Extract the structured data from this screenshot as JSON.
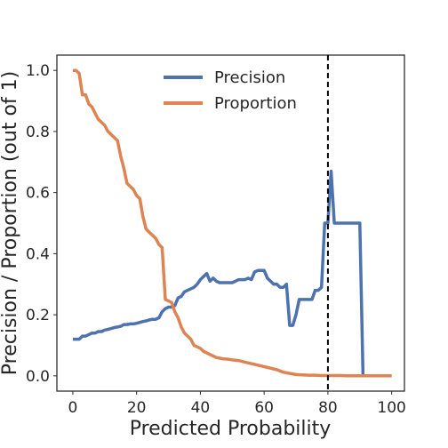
{
  "chart_data": {
    "type": "line",
    "title": "",
    "xlabel": "Predicted Probability",
    "ylabel": "Precision / Proportion (out of 1)",
    "xlim": [
      -5,
      104
    ],
    "ylim": [
      -0.05,
      1.05
    ],
    "xticks": [
      0,
      20,
      40,
      60,
      80,
      100
    ],
    "yticks": [
      0.0,
      0.2,
      0.4,
      0.6,
      0.8,
      1.0
    ],
    "xtick_labels": [
      "0",
      "20",
      "40",
      "60",
      "80",
      "100"
    ],
    "ytick_labels": [
      "0.0",
      "0.2",
      "0.4",
      "0.6",
      "0.8",
      "1.0"
    ],
    "grid": false,
    "legend_position": "top-center",
    "vline": {
      "x": 80,
      "style": "dashed",
      "color": "#000000"
    },
    "series": [
      {
        "name": "Precision",
        "color": "#4c72b0",
        "x": [
          0,
          2,
          3,
          4,
          5,
          6,
          7,
          8,
          9,
          10,
          11,
          12,
          13,
          14,
          15,
          16,
          17,
          18,
          19,
          20,
          21,
          22,
          23,
          24,
          25,
          26,
          27,
          28,
          29,
          30,
          31,
          32,
          33,
          34,
          35,
          36,
          37,
          38,
          39,
          40,
          41,
          42,
          43,
          44,
          45,
          46,
          47,
          48,
          49,
          50,
          51,
          52,
          53,
          54,
          55,
          56,
          57,
          58,
          59,
          60,
          61,
          62,
          63,
          64,
          65,
          66,
          67,
          68,
          69,
          70,
          71,
          72,
          73,
          74,
          75,
          76,
          77,
          78,
          79,
          80,
          81,
          82,
          83,
          84,
          85,
          86,
          87,
          88,
          89,
          90,
          91
        ],
        "y": [
          0.12,
          0.12,
          0.13,
          0.13,
          0.135,
          0.14,
          0.14,
          0.145,
          0.145,
          0.15,
          0.152,
          0.155,
          0.158,
          0.16,
          0.162,
          0.168,
          0.168,
          0.17,
          0.17,
          0.172,
          0.175,
          0.178,
          0.18,
          0.183,
          0.185,
          0.185,
          0.19,
          0.21,
          0.22,
          0.225,
          0.225,
          0.23,
          0.255,
          0.26,
          0.275,
          0.28,
          0.285,
          0.29,
          0.3,
          0.315,
          0.325,
          0.335,
          0.31,
          0.32,
          0.31,
          0.305,
          0.305,
          0.305,
          0.305,
          0.305,
          0.31,
          0.315,
          0.315,
          0.315,
          0.32,
          0.315,
          0.34,
          0.345,
          0.345,
          0.345,
          0.32,
          0.31,
          0.3,
          0.3,
          0.29,
          0.29,
          0.3,
          0.165,
          0.165,
          0.2,
          0.25,
          0.25,
          0.25,
          0.25,
          0.25,
          0.28,
          0.28,
          0.29,
          0.5,
          0.5,
          0.67,
          0.5,
          0.5,
          0.5,
          0.5,
          0.5,
          0.5,
          0.5,
          0.5,
          0.5,
          0.0
        ]
      },
      {
        "name": "Proportion",
        "color": "#dd8452",
        "x": [
          0,
          1,
          2,
          3,
          4,
          5,
          6,
          7,
          8,
          9,
          10,
          11,
          12,
          13,
          14,
          15,
          16,
          17,
          18,
          19,
          20,
          21,
          22,
          23,
          24,
          25,
          26,
          27,
          28,
          29,
          30,
          31,
          32,
          33,
          34,
          35,
          36,
          37,
          38,
          39,
          40,
          41,
          42,
          43,
          44,
          45,
          46,
          47,
          48,
          49,
          50,
          52,
          54,
          56,
          58,
          60,
          62,
          64,
          66,
          68,
          70,
          72,
          74,
          76,
          78,
          80,
          82,
          84,
          86,
          88,
          90,
          92,
          94,
          96,
          98,
          100
        ],
        "y": [
          1.0,
          1.0,
          0.99,
          0.92,
          0.92,
          0.89,
          0.88,
          0.86,
          0.84,
          0.83,
          0.82,
          0.8,
          0.79,
          0.78,
          0.77,
          0.72,
          0.68,
          0.63,
          0.62,
          0.61,
          0.59,
          0.58,
          0.52,
          0.48,
          0.47,
          0.46,
          0.45,
          0.43,
          0.42,
          0.25,
          0.245,
          0.24,
          0.21,
          0.19,
          0.16,
          0.14,
          0.13,
          0.12,
          0.1,
          0.095,
          0.09,
          0.08,
          0.075,
          0.07,
          0.065,
          0.06,
          0.058,
          0.056,
          0.055,
          0.054,
          0.052,
          0.05,
          0.045,
          0.04,
          0.035,
          0.03,
          0.025,
          0.02,
          0.012,
          0.008,
          0.004,
          0.003,
          0.002,
          0.002,
          0.001,
          0.001,
          0.001,
          0.001,
          0.0,
          0.0,
          0.0,
          0.0,
          0.0,
          0.0,
          0.0,
          0.0
        ]
      }
    ]
  }
}
